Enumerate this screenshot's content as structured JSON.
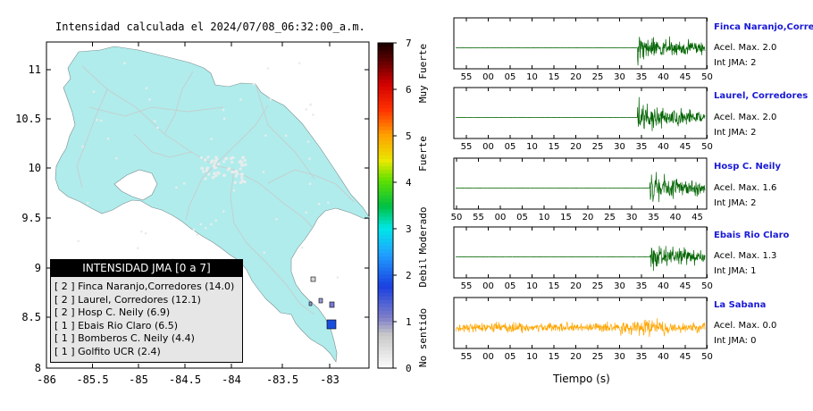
{
  "map": {
    "title": "Intensidad calculada el 2024/07/08_06:32:00_a.m.",
    "x_ticks": [
      "-86",
      "-85.5",
      "-85",
      "-84.5",
      "-84",
      "-83.5",
      "-83"
    ],
    "y_ticks": [
      "11",
      "10.5",
      "10",
      "9.5",
      "9",
      "8.5",
      "8"
    ],
    "land_color": "#b0ecec"
  },
  "legend": {
    "title": "INTENSIDAD JMA [0 a 7]",
    "items": [
      "[ 2 ] Finca Naranjo,Corredores (14.0)",
      "[ 2 ] Laurel, Corredores (12.1)",
      "[ 2 ] Hosp C. Neily (6.9)",
      "[ 1 ] Ebais Rio Claro (6.5)",
      "[ 1 ] Bomberos C. Neily (4.4)",
      "[ 1 ] Golfito UCR (2.4)"
    ]
  },
  "colorbar": {
    "ticks": [
      "7",
      "6",
      "5",
      "4",
      "3",
      "2",
      "1",
      "0"
    ],
    "labels": [
      "Muy Fuerte",
      "Fuerte",
      "Moderado",
      "Debil",
      "No sentido"
    ]
  },
  "waveforms": {
    "time_axis_label": "Tiempo (s)",
    "panels": [
      {
        "name": "Finca Naranjo,Corredor",
        "acc": "Acel. Max. 2.0",
        "int": "Int JMA: 2",
        "ticks": [
          "55",
          "00",
          "05",
          "10",
          "15",
          "20",
          "25",
          "30",
          "35",
          "40",
          "45",
          "50"
        ],
        "color": "#006400"
      },
      {
        "name": "Laurel, Corredores",
        "acc": "Acel. Max. 2.0",
        "int": "Int JMA: 2",
        "ticks": [
          "55",
          "00",
          "05",
          "10",
          "15",
          "20",
          "25",
          "30",
          "35",
          "40",
          "45",
          "50"
        ],
        "color": "#006400"
      },
      {
        "name": "Hosp C. Neily",
        "acc": "Acel. Max. 1.6",
        "int": "Int JMA: 2",
        "ticks": [
          "50",
          "55",
          "00",
          "05",
          "10",
          "15",
          "20",
          "25",
          "30",
          "35",
          "40",
          "45"
        ],
        "color": "#006400"
      },
      {
        "name": "Ebais Rio Claro",
        "acc": "Acel. Max. 1.3",
        "int": "Int JMA: 1",
        "ticks": [
          "55",
          "00",
          "05",
          "10",
          "15",
          "20",
          "25",
          "30",
          "35",
          "40",
          "45",
          "50"
        ],
        "color": "#006400"
      },
      {
        "name": "La Sabana",
        "acc": "Acel. Max. 0.0",
        "int": "Int JMA: 0",
        "ticks": [
          "55",
          "00",
          "05",
          "10",
          "15",
          "20",
          "25",
          "30",
          "35",
          "40",
          "45",
          "50"
        ],
        "color": "#ffa500"
      }
    ]
  },
  "chart_data": [
    {
      "type": "map",
      "title": "Intensidad calculada el 2024/07/08_06:32:00_a.m.",
      "xlim": [
        -86,
        -82.5
      ],
      "ylim": [
        8,
        11.3
      ],
      "stations": [
        {
          "lon": -82.97,
          "lat": 8.42,
          "intensity": 2
        },
        {
          "lon": -82.93,
          "lat": 8.68,
          "intensity": 1
        },
        {
          "lon": -83.02,
          "lat": 8.65,
          "intensity": 1
        },
        {
          "lon": -83.15,
          "lat": 8.88,
          "intensity": 0
        }
      ]
    },
    {
      "type": "colorbar",
      "range": [
        0,
        7
      ],
      "ticks": [
        0,
        1,
        2,
        3,
        4,
        5,
        6,
        7
      ],
      "categories": [
        "No sentido",
        "Debil",
        "Moderado",
        "Fuerte",
        "Muy Fuerte"
      ]
    },
    {
      "type": "line",
      "xlabel": "Tiempo (s)",
      "series": [
        {
          "name": "Finca Naranjo,Corredor",
          "max_acc": 2.0,
          "jma": 2,
          "onset_tick_fraction": 0.73
        },
        {
          "name": "Laurel, Corredores",
          "max_acc": 2.0,
          "jma": 2,
          "onset_tick_fraction": 0.73
        },
        {
          "name": "Hosp C. Neily",
          "max_acc": 1.6,
          "jma": 2,
          "onset_tick_fraction": 0.78
        },
        {
          "name": "Ebais Rio Claro",
          "max_acc": 1.3,
          "jma": 1,
          "onset_tick_fraction": 0.78
        },
        {
          "name": "La Sabana",
          "max_acc": 0.0,
          "jma": 0,
          "onset_tick_fraction": 0.0
        }
      ]
    }
  ]
}
